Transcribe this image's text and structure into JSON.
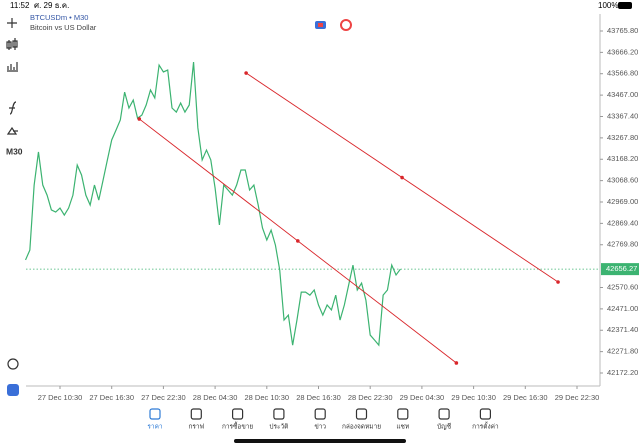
{
  "status": {
    "time": "11:52",
    "date": "ศ. 29 ธ.ค.",
    "battery": "100%"
  },
  "chart_data": {
    "type": "line",
    "title": "BTCUSDm • M30",
    "subtitle": "Bitcoin vs US Dollar",
    "timeframe": "M30",
    "xlim": [
      -4,
      62
    ],
    "xticks": [
      {
        "value": 0,
        "label": "27 Dec 10:30"
      },
      {
        "value": 6,
        "label": "27 Dec 16:30"
      },
      {
        "value": 12,
        "label": "27 Dec 22:30"
      },
      {
        "value": 18,
        "label": "28 Dec 04:30"
      },
      {
        "value": 24,
        "label": "28 Dec 10:30"
      },
      {
        "value": 30,
        "label": "28 Dec 16:30"
      },
      {
        "value": 36,
        "label": "28 Dec 22:30"
      },
      {
        "value": 42,
        "label": "29 Dec 04:30"
      },
      {
        "value": 48,
        "label": "29 Dec 10:30"
      },
      {
        "value": 54,
        "label": "29 Dec 16:30"
      },
      {
        "value": 60,
        "label": "29 Dec 22:30"
      }
    ],
    "ylim": [
      42172.2,
      43765.8
    ],
    "yticks": [
      {
        "value": 42172.2,
        "label": "42172.20"
      },
      {
        "value": 42271.8,
        "label": "42271.80"
      },
      {
        "value": 42371.4,
        "label": "42371.40"
      },
      {
        "value": 42471,
        "label": "42471.00"
      },
      {
        "value": 42570.6,
        "label": "42570.60"
      },
      {
        "value": 42769.8,
        "label": "42769.80"
      },
      {
        "value": 42869.4,
        "label": "42869.40"
      },
      {
        "value": 42969,
        "label": "42969.00"
      },
      {
        "value": 43068.6,
        "label": "43068.60"
      },
      {
        "value": 43168.2,
        "label": "43168.20"
      },
      {
        "value": 43267.8,
        "label": "43267.80"
      },
      {
        "value": 43367.4,
        "label": "43367.40"
      },
      {
        "value": 43467,
        "label": "43467.00"
      },
      {
        "value": 43566.8,
        "label": "43566.80"
      },
      {
        "value": 43666.2,
        "label": "43666.20"
      },
      {
        "value": 43765.8,
        "label": "43765.80"
      }
    ],
    "series": [
      {
        "color": "#3cb371",
        "x": [
          -4,
          -3.5,
          -3,
          -2.5,
          -2,
          -1.5,
          -1,
          -0.5,
          0,
          0.5,
          1,
          1.5,
          2,
          2.5,
          3,
          3.5,
          4,
          4.5,
          5,
          5.5,
          6,
          6.5,
          7,
          7.5,
          8,
          8.5,
          9,
          9.5,
          10,
          10.5,
          11,
          11.5,
          12,
          12.5,
          13,
          13.5,
          14,
          14.5,
          15,
          15.5,
          16,
          16.5,
          17,
          17.5,
          18,
          18.5,
          19,
          19.5,
          20,
          20.5,
          21,
          21.5,
          22,
          22.5,
          23,
          23.5,
          24,
          24.5,
          25,
          25.5,
          26,
          26.5,
          27,
          27.5,
          28,
          28.5,
          29,
          29.5,
          30,
          30.5,
          31,
          31.5,
          32,
          32.5,
          33,
          33.5,
          34,
          34.5,
          35,
          35.5,
          36,
          36.5,
          37,
          37.5,
          38,
          38.5,
          39,
          39.5
        ],
        "values": [
          42699,
          42745,
          43048,
          43202,
          43048,
          43001,
          42932,
          42922,
          42941,
          42908,
          42941,
          43001,
          43141,
          43095,
          43001,
          42955,
          43048,
          42978,
          43071,
          43165,
          43258,
          43304,
          43351,
          43481,
          43407,
          43444,
          43360,
          43374,
          43421,
          43491,
          43454,
          43607,
          43575,
          43584,
          43407,
          43388,
          43430,
          43388,
          43421,
          43621,
          43314,
          43165,
          43211,
          43165,
          43034,
          42862,
          43048,
          43025,
          43001,
          43048,
          43118,
          43118,
          43025,
          43048,
          42955,
          42848,
          42792,
          42838,
          42768,
          42652,
          42419,
          42442,
          42302,
          42419,
          42549,
          42549,
          42535,
          42559,
          42489,
          42442,
          42489,
          42466,
          42535,
          42419,
          42489,
          42582,
          42675,
          42559,
          42591,
          42512,
          42349,
          42326,
          42302,
          42535,
          42559,
          42675,
          42629,
          42656
        ]
      }
    ],
    "current_price": 42656.27,
    "trend_lines": [
      {
        "color": "#d9262b",
        "x": [
          9.2,
          46.0
        ],
        "values": [
          43356,
          42219
        ]
      },
      {
        "color": "#d9262b",
        "x": [
          21.6,
          57.8
        ],
        "values": [
          43570,
          42596
        ]
      }
    ]
  },
  "tabs": [
    "ราคา",
    "กราฟ",
    "การซื้อขาย",
    "ประวัติ",
    "ข่าว",
    "กล่องจดหมาย",
    "แชท",
    "บัญชี",
    "การตั้งค่า"
  ]
}
